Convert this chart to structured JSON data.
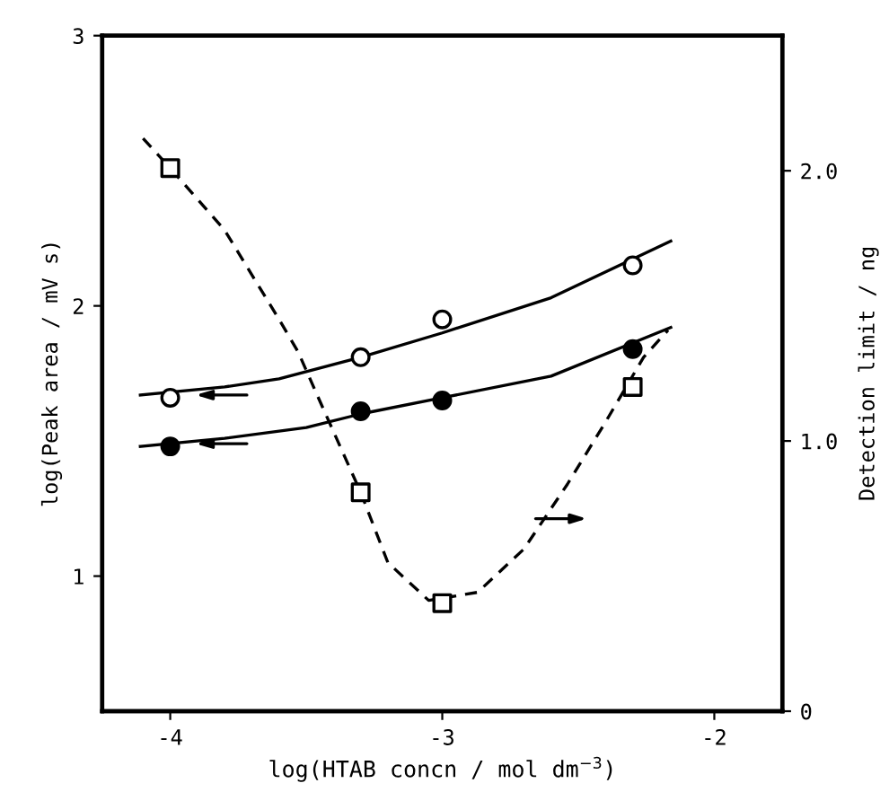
{
  "chart_data": {
    "type": "scatter",
    "xlabel": "log(HTAB concn / mol dm$^{−3}$)",
    "ylabel": "log(Peak area / mV s)",
    "y2label": "Detection limit / ng",
    "xlim": [
      -4.25,
      -1.75
    ],
    "xticks": [
      -4,
      -3,
      -2
    ],
    "ylim": [
      0.5,
      3
    ],
    "yticks": [
      1,
      2,
      3
    ],
    "y2lim": [
      0,
      2.5
    ],
    "y2ticks": [
      0,
      {
        "value": 1,
        "label": "1.0"
      },
      {
        "value": 2,
        "label": "2.0"
      }
    ],
    "grid": false,
    "legend": false,
    "series": [
      {
        "color": "#ffffff",
        "marker": "circle",
        "x": [
          -4,
          -3.3,
          -3,
          -2.3
        ],
        "values": [
          1.66,
          1.81,
          1.95,
          2.15
        ]
      },
      {
        "color": "#000000",
        "marker": "circle",
        "x": [
          -4,
          -3.3,
          -3,
          -2.3
        ],
        "values": [
          1.48,
          1.61,
          1.65,
          1.84
        ]
      },
      {
        "color": "#ffffff",
        "marker": "square",
        "axis": "y2",
        "x": [
          -4,
          -3.3,
          -3,
          -2.3
        ],
        "values": [
          2.01,
          0.81,
          0.4,
          1.2
        ]
      },
      {
        "type": "line",
        "color": "#000000",
        "marker": "none",
        "line_style": "solid",
        "x": [
          -4.11,
          -3.8,
          -3.6,
          -3.3,
          -3.0,
          -2.6,
          -2.16
        ],
        "values": [
          1.67,
          1.7,
          1.73,
          1.81,
          1.9,
          2.03,
          2.24
        ]
      },
      {
        "type": "line",
        "color": "#000000",
        "marker": "none",
        "line_style": "solid",
        "x": [
          -4.11,
          -3.8,
          -3.5,
          -3.3,
          -3.0,
          -2.6,
          -2.16
        ],
        "values": [
          1.48,
          1.51,
          1.55,
          1.6,
          1.66,
          1.74,
          1.92
        ]
      },
      {
        "type": "line",
        "color": "#000000",
        "marker": "none",
        "line_style": "dashed",
        "axis": "y2",
        "x": [
          -4.1,
          -4.0,
          -3.8,
          -3.6,
          -3.53,
          -3.46,
          -3.3,
          -3.2,
          -3.05,
          -2.87,
          -2.7,
          -2.54,
          -2.4,
          -2.26,
          -2.17
        ],
        "values": [
          2.12,
          2.01,
          1.78,
          1.45,
          1.33,
          1.17,
          0.81,
          0.55,
          0.41,
          0.44,
          0.6,
          0.84,
          1.07,
          1.31,
          1.41
        ]
      }
    ]
  }
}
